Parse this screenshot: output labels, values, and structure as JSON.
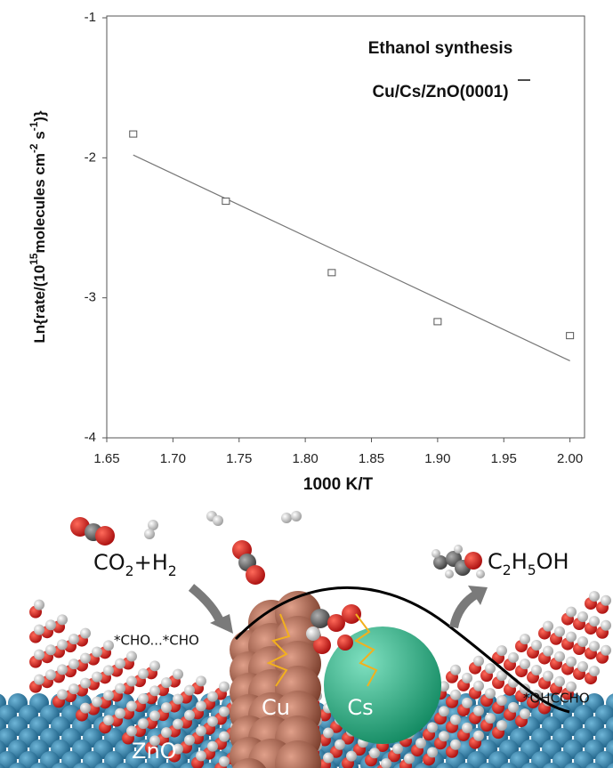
{
  "chart_data": {
    "type": "scatter",
    "title": "Ethanol  synthesis",
    "subtitle": "Cu/Cs/ZnO(0001)",
    "x_label": "1000 K/T",
    "y_label": [
      {
        "text": "Ln{rate/(10"
      },
      {
        "text": "15",
        "sup": true
      },
      {
        "text": "molecules cm"
      },
      {
        "text": "-2",
        "sup": true
      },
      {
        "text": " s"
      },
      {
        "text": "-1",
        "sup": true
      },
      {
        "text": ")}"
      }
    ],
    "x": [
      1.67,
      1.74,
      1.82,
      1.9,
      2.0
    ],
    "y": [
      -1.83,
      -2.31,
      -2.82,
      -3.17,
      -3.27
    ],
    "color": "#555555",
    "fit": {
      "x": [
        1.67,
        2.0
      ],
      "y": [
        -1.98,
        -3.45
      ],
      "color": "#777777"
    },
    "xlim": [
      1.65,
      2.011
    ],
    "ylim": [
      -4,
      -1
    ],
    "xticks": [
      1.65,
      {
        "value": 1.7,
        "label": "1.70"
      },
      1.75,
      {
        "value": 1.8,
        "label": "1.80"
      },
      1.85,
      {
        "value": 1.9,
        "label": "1.90"
      },
      1.95,
      {
        "value": 2.0,
        "label": "2.00"
      }
    ],
    "yticks": [
      -1,
      -2,
      -3,
      -4
    ]
  },
  "illustration": {
    "reactants": [
      {
        "text": "CO"
      },
      {
        "text": "2",
        "sub": true
      },
      {
        "text": "+H"
      },
      {
        "text": "2",
        "sub": true
      }
    ],
    "product": [
      {
        "text": "C"
      },
      {
        "text": "2",
        "sub": true
      },
      {
        "text": "H"
      },
      {
        "text": "5",
        "sub": true
      },
      {
        "text": "OH"
      }
    ],
    "intermediate_left": "*CHO...*CHO",
    "intermediate_right": "*OHCCHO",
    "cu": "Cu",
    "cs": "Cs",
    "support": "ZnO"
  }
}
